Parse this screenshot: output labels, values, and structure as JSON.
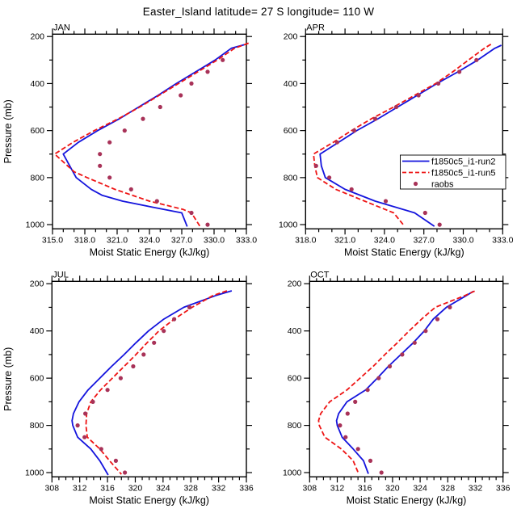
{
  "title": "Easter_Island  latitude= 27 S longitude= 110 W",
  "chart_data": {
    "type": "line",
    "title": "Easter_Island  latitude= 27 S longitude= 110 W",
    "xlabel": "Moist Static Energy (kJ/kg)",
    "ylabel": "Pressure (mb)",
    "grid": false,
    "y_axis": {
      "min": 190,
      "max": 1018,
      "inverted": true,
      "major_ticks": [
        200,
        400,
        600,
        800,
        1000
      ],
      "minor_ticks": [
        300,
        500,
        700,
        900
      ],
      "labels": [
        "200",
        "400",
        "600",
        "800",
        "1000"
      ]
    },
    "series_defs": [
      {
        "key": "run2",
        "label": "f1850c5_i1-run2",
        "color": "#1414dd",
        "type": "line",
        "dash": ""
      },
      {
        "key": "run5",
        "label": "f1850c5_i1-run5",
        "color": "#ee1414",
        "type": "line",
        "dash": "6 3"
      },
      {
        "key": "raobs",
        "label": "raobs",
        "color": "#a83258",
        "type": "marker"
      }
    ],
    "legend": {
      "entries": [
        "f1850c5_i1-run2",
        "f1850c5_i1-run5",
        "raobs"
      ],
      "position": "inside-APR-panel"
    },
    "panels": [
      {
        "id": "jan",
        "label": "JAN",
        "show_legend": false,
        "ylabel": "Pressure (mb)",
        "x_axis": {
          "min": 315,
          "max": 333,
          "minor_step": 1,
          "major_ticks": [
            315,
            318,
            321,
            324,
            327,
            330,
            333
          ],
          "labels": [
            "315.0",
            "318.0",
            "321.0",
            "324.0",
            "327.0",
            "330.0",
            "333.0"
          ]
        },
        "series": {
          "run2": [
            [
              235,
              332.8
            ],
            [
              250,
              331.6
            ],
            [
              300,
              330.1
            ],
            [
              350,
              328.3
            ],
            [
              400,
              326.5
            ],
            [
              450,
              324.8
            ],
            [
              500,
              323.0
            ],
            [
              550,
              321.2
            ],
            [
              600,
              319.2
            ],
            [
              650,
              317.4
            ],
            [
              700,
              316.0
            ],
            [
              750,
              316.6
            ],
            [
              800,
              317.2
            ],
            [
              850,
              318.6
            ],
            [
              875,
              319.6
            ],
            [
              900,
              321.5
            ],
            [
              925,
              324.2
            ],
            [
              950,
              327.0
            ],
            [
              1008,
              327.5
            ]
          ],
          "run5": [
            [
              228,
              333.2
            ],
            [
              250,
              331.9
            ],
            [
              300,
              330.3
            ],
            [
              350,
              328.5
            ],
            [
              400,
              326.7
            ],
            [
              450,
              324.9
            ],
            [
              500,
              323.1
            ],
            [
              550,
              321.1
            ],
            [
              600,
              318.9
            ],
            [
              650,
              316.9
            ],
            [
              700,
              315.2
            ],
            [
              750,
              316.4
            ],
            [
              775,
              317.0
            ],
            [
              800,
              318.2
            ],
            [
              850,
              320.8
            ],
            [
              900,
              324.0
            ],
            [
              935,
              327.1
            ],
            [
              950,
              327.9
            ],
            [
              1008,
              328.7
            ]
          ],
          "raobs": [
            [
              300,
              330.8
            ],
            [
              350,
              329.4
            ],
            [
              400,
              327.9
            ],
            [
              450,
              326.9
            ],
            [
              500,
              325.0
            ],
            [
              550,
              323.4
            ],
            [
              600,
              321.7
            ],
            [
              650,
              320.3
            ],
            [
              700,
              319.4
            ],
            [
              750,
              319.4
            ],
            [
              800,
              320.3
            ],
            [
              850,
              322.3
            ],
            [
              900,
              324.7
            ],
            [
              950,
              327.9
            ],
            [
              1000,
              329.4
            ]
          ]
        }
      },
      {
        "id": "apr",
        "label": "APR",
        "show_legend": true,
        "ylabel": "",
        "x_axis": {
          "min": 318,
          "max": 333,
          "minor_step": 1,
          "major_ticks": [
            318,
            321,
            324,
            327,
            330,
            333
          ],
          "labels": [
            "318.0",
            "321.0",
            "324.0",
            "327.0",
            "330.0",
            "333.0"
          ]
        },
        "series": {
          "run2": [
            [
              237,
              332.9
            ],
            [
              250,
              332.4
            ],
            [
              300,
              331.1
            ],
            [
              350,
              329.6
            ],
            [
              400,
              328.0
            ],
            [
              450,
              326.5
            ],
            [
              500,
              325.0
            ],
            [
              550,
              323.5
            ],
            [
              600,
              321.9
            ],
            [
              650,
              320.5
            ],
            [
              700,
              319.1
            ],
            [
              750,
              319.2
            ],
            [
              800,
              319.5
            ],
            [
              850,
              321.0
            ],
            [
              900,
              323.3
            ],
            [
              950,
              326.3
            ],
            [
              1007,
              327.8
            ]
          ],
          "run5": [
            [
              233,
              332.1
            ],
            [
              250,
              331.6
            ],
            [
              300,
              330.4
            ],
            [
              350,
              329.2
            ],
            [
              400,
              327.9
            ],
            [
              450,
              326.3
            ],
            [
              500,
              324.7
            ],
            [
              550,
              323.0
            ],
            [
              600,
              321.5
            ],
            [
              650,
              320.1
            ],
            [
              700,
              318.6
            ],
            [
              750,
              318.7
            ],
            [
              800,
              318.9
            ],
            [
              850,
              320.3
            ],
            [
              900,
              322.5
            ],
            [
              950,
              324.7
            ],
            [
              1005,
              325.5
            ]
          ],
          "raobs": [
            [
              300,
              331.0
            ],
            [
              350,
              329.7
            ],
            [
              400,
              328.1
            ],
            [
              450,
              326.6
            ],
            [
              500,
              324.9
            ],
            [
              550,
              323.3
            ],
            [
              600,
              321.7
            ],
            [
              650,
              320.4
            ],
            [
              750,
              318.8
            ],
            [
              800,
              319.8
            ],
            [
              850,
              321.5
            ],
            [
              900,
              324.1
            ],
            [
              950,
              327.1
            ],
            [
              1000,
              328.2
            ]
          ]
        }
      },
      {
        "id": "jul",
        "label": "JUL",
        "show_legend": false,
        "ylabel": "Pressure (mb)",
        "x_axis": {
          "min": 308,
          "max": 336,
          "minor_step": 1,
          "major_ticks": [
            308,
            312,
            316,
            320,
            324,
            328,
            332,
            336
          ],
          "labels": [
            "308",
            "312",
            "316",
            "320",
            "324",
            "328",
            "332",
            "336"
          ]
        },
        "series": {
          "run2": [
            [
              230,
              333.9
            ],
            [
              250,
              331.6
            ],
            [
              300,
              327.0
            ],
            [
              350,
              324.1
            ],
            [
              400,
              321.9
            ],
            [
              450,
              320.1
            ],
            [
              500,
              318.4
            ],
            [
              550,
              316.6
            ],
            [
              600,
              314.9
            ],
            [
              650,
              313.2
            ],
            [
              700,
              311.9
            ],
            [
              750,
              311.1
            ],
            [
              780,
              310.9
            ],
            [
              800,
              311.0
            ],
            [
              850,
              311.7
            ],
            [
              900,
              313.6
            ],
            [
              950,
              314.9
            ],
            [
              1010,
              316.1
            ]
          ],
          "run5": [
            [
              230,
              333.2
            ],
            [
              250,
              331.2
            ],
            [
              300,
              328.2
            ],
            [
              350,
              325.6
            ],
            [
              400,
              323.4
            ],
            [
              450,
              321.7
            ],
            [
              500,
              320.1
            ],
            [
              550,
              318.4
            ],
            [
              600,
              316.7
            ],
            [
              650,
              315.0
            ],
            [
              700,
              313.6
            ],
            [
              750,
              313.0
            ],
            [
              800,
              312.9
            ],
            [
              850,
              313.1
            ],
            [
              900,
              314.9
            ],
            [
              950,
              316.3
            ],
            [
              1007,
              318.0
            ]
          ],
          "raobs": [
            [
              300,
              327.8
            ],
            [
              350,
              325.6
            ],
            [
              400,
              324.1
            ],
            [
              450,
              322.7
            ],
            [
              500,
              321.2
            ],
            [
              550,
              319.7
            ],
            [
              600,
              317.9
            ],
            [
              650,
              316.0
            ],
            [
              700,
              313.9
            ],
            [
              750,
              312.8
            ],
            [
              800,
              311.7
            ],
            [
              850,
              312.7
            ],
            [
              900,
              315.1
            ],
            [
              950,
              317.2
            ],
            [
              1000,
              318.5
            ]
          ]
        }
      },
      {
        "id": "oct",
        "label": "OCT",
        "show_legend": false,
        "ylabel": "",
        "x_axis": {
          "min": 308,
          "max": 336,
          "minor_step": 1,
          "major_ticks": [
            308,
            312,
            316,
            320,
            324,
            328,
            332,
            336
          ],
          "labels": [
            "308",
            "312",
            "316",
            "320",
            "324",
            "328",
            "332",
            "336"
          ]
        },
        "series": {
          "run2": [
            [
              232,
              331.7
            ],
            [
              250,
              330.7
            ],
            [
              300,
              327.8
            ],
            [
              350,
              325.9
            ],
            [
              400,
              324.6
            ],
            [
              450,
              323.0
            ],
            [
              500,
              321.2
            ],
            [
              550,
              319.4
            ],
            [
              600,
              317.8
            ],
            [
              650,
              316.1
            ],
            [
              700,
              313.4
            ],
            [
              750,
              312.2
            ],
            [
              780,
              311.9
            ],
            [
              800,
              312.0
            ],
            [
              850,
              312.7
            ],
            [
              900,
              314.3
            ],
            [
              950,
              315.8
            ],
            [
              1005,
              316.5
            ]
          ],
          "run5": [
            [
              231,
              331.9
            ],
            [
              250,
              330.5
            ],
            [
              300,
              326.2
            ],
            [
              350,
              324.2
            ],
            [
              400,
              322.4
            ],
            [
              450,
              320.7
            ],
            [
              500,
              318.9
            ],
            [
              550,
              317.2
            ],
            [
              600,
              315.3
            ],
            [
              650,
              313.4
            ],
            [
              700,
              310.9
            ],
            [
              750,
              309.6
            ],
            [
              780,
              309.3
            ],
            [
              800,
              309.4
            ],
            [
              850,
              310.2
            ],
            [
              900,
              312.6
            ],
            [
              950,
              314.3
            ],
            [
              1005,
              315.1
            ]
          ],
          "raobs": [
            [
              300,
              328.3
            ],
            [
              350,
              326.5
            ],
            [
              400,
              324.8
            ],
            [
              450,
              323.2
            ],
            [
              500,
              321.4
            ],
            [
              550,
              319.6
            ],
            [
              600,
              318.0
            ],
            [
              650,
              316.4
            ],
            [
              700,
              314.6
            ],
            [
              750,
              313.5
            ],
            [
              800,
              312.4
            ],
            [
              850,
              313.2
            ],
            [
              900,
              315.0
            ],
            [
              950,
              316.8
            ],
            [
              1000,
              318.4
            ]
          ]
        }
      }
    ]
  }
}
